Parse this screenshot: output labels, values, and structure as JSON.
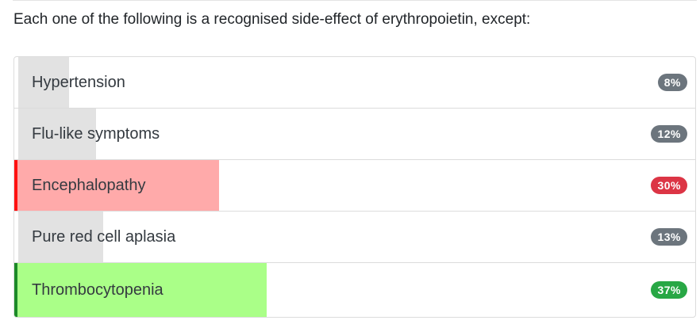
{
  "question": "Each one of the following is a recognised side-effect of erythropoietin, except:",
  "options": [
    {
      "label": "Hypertension",
      "percent_text": "8%",
      "percent": 8,
      "state": "neutral"
    },
    {
      "label": "Flu-like symptoms",
      "percent_text": "12%",
      "percent": 12,
      "state": "neutral"
    },
    {
      "label": "Encephalopathy",
      "percent_text": "30%",
      "percent": 30,
      "state": "wrong"
    },
    {
      "label": "Pure red cell aplasia",
      "percent_text": "13%",
      "percent": 13,
      "state": "neutral"
    },
    {
      "label": "Thrombocytopenia",
      "percent_text": "37%",
      "percent": 37,
      "state": "correct"
    }
  ],
  "colors": {
    "neutral_bar": "#e2e2e2",
    "wrong_bar": "#ffaaaa",
    "wrong_accent": "#ff1111",
    "wrong_badge": "#dc3545",
    "correct_bar": "#aaff88",
    "correct_accent": "#1c8a28",
    "correct_badge": "#28a745",
    "neutral_badge": "#6c757d"
  }
}
